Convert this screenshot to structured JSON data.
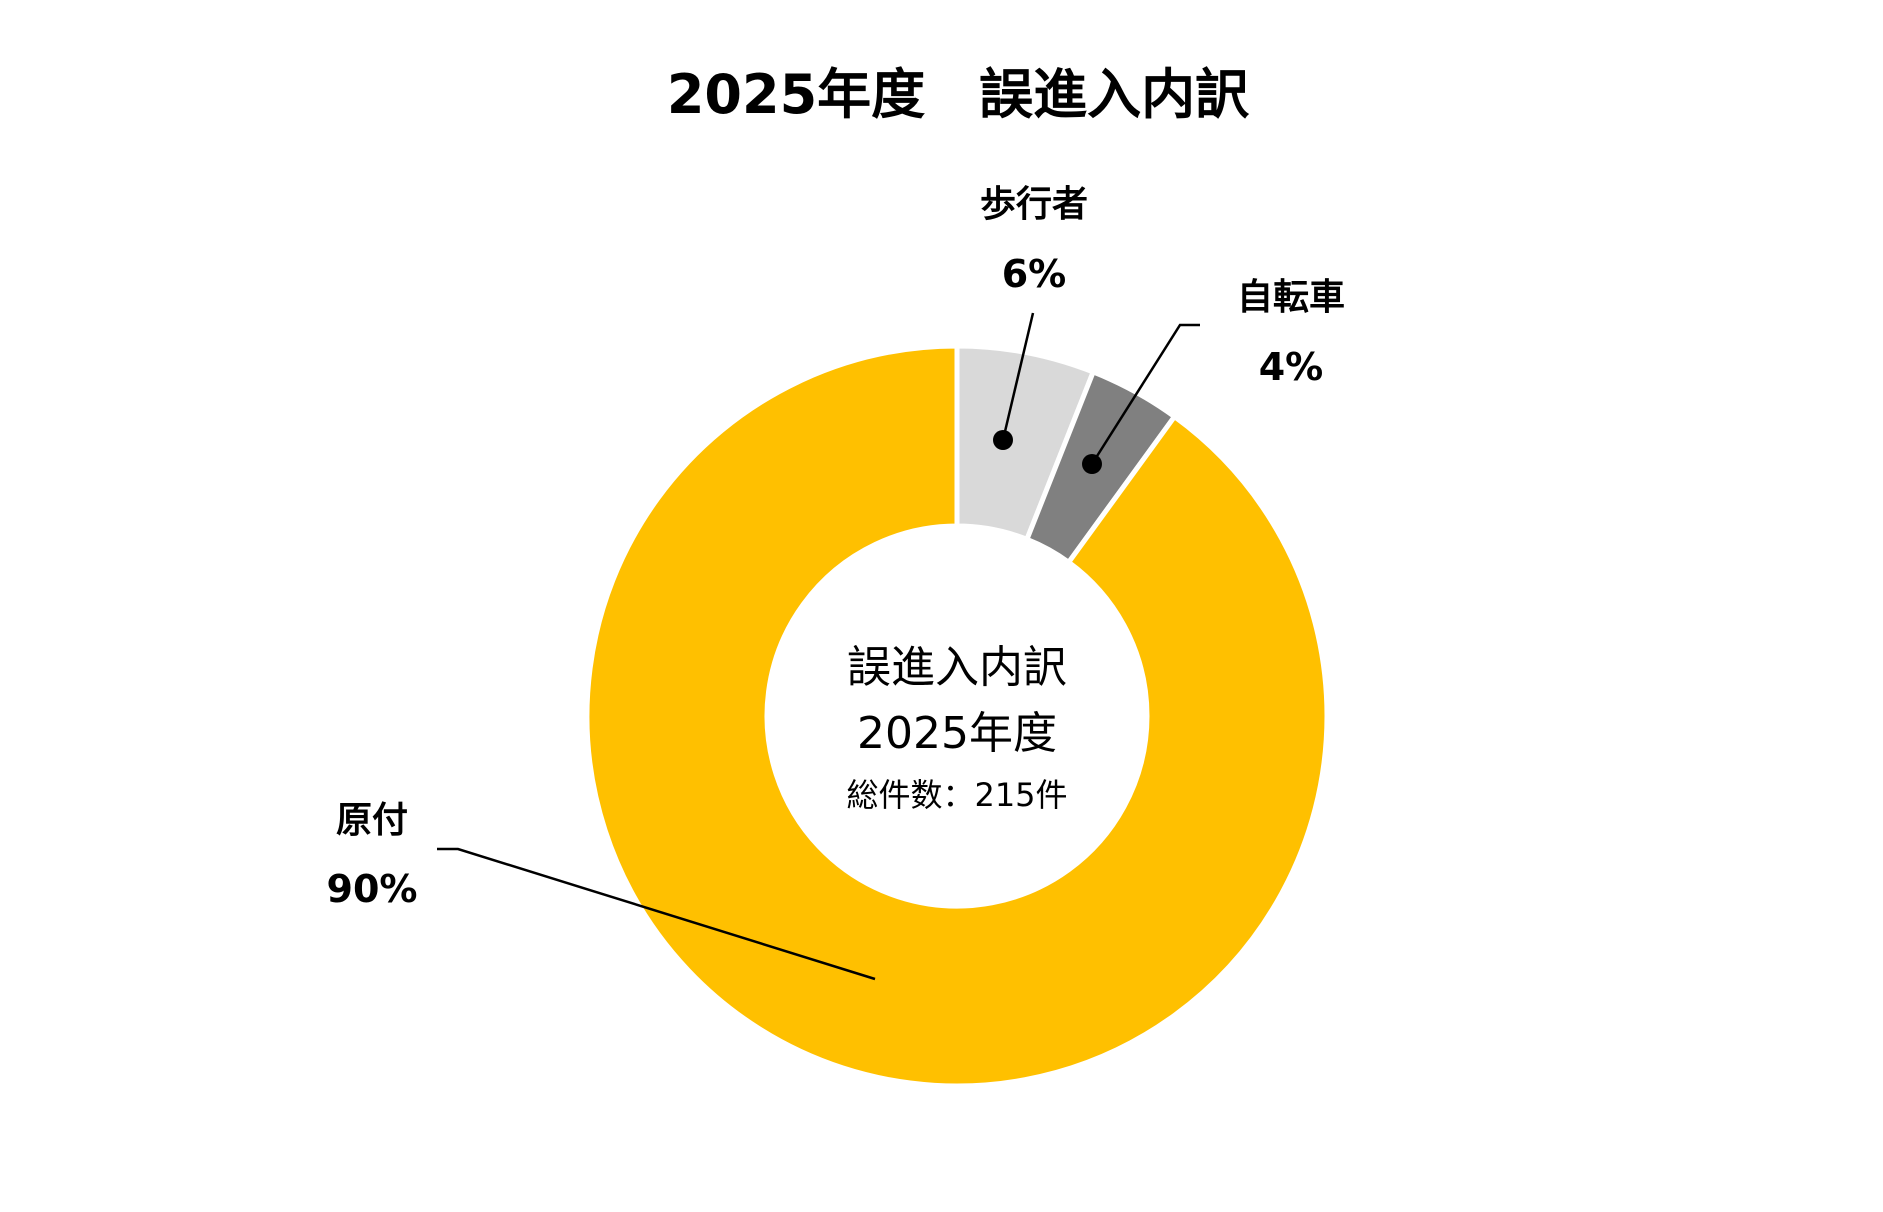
{
  "chart_data": {
    "type": "pie",
    "title": "2025年度　誤進入内訳",
    "center_text": {
      "line1": "誤進入内訳",
      "line2": "2025年度",
      "line3": "総件数：215件"
    },
    "slices": [
      {
        "label": "歩行者",
        "percent_label": "6%",
        "value": 6,
        "color": "#d9d9d9"
      },
      {
        "label": "自転車",
        "percent_label": "4%",
        "value": 4,
        "color": "#808080"
      },
      {
        "label": "原付",
        "percent_label": "90%",
        "value": 90,
        "color": "#ffc000"
      }
    ]
  }
}
